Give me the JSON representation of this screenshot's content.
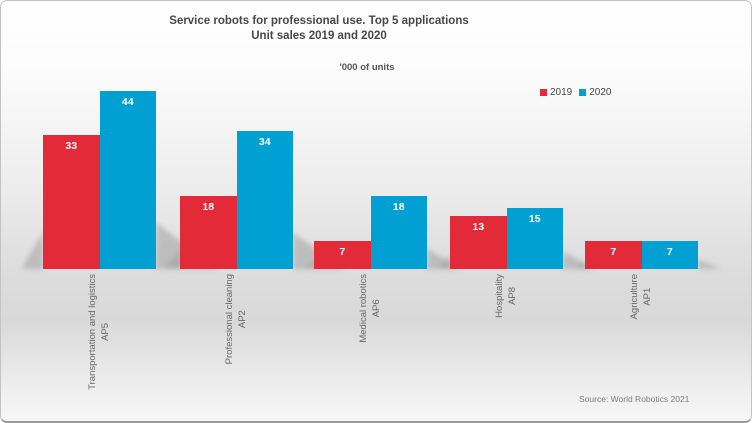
{
  "chart_data": {
    "type": "bar",
    "title": "Service robots for professional use. Top 5 applications",
    "subtitle": "Unit sales 2019 and 2020",
    "units_label": "'000 of units",
    "source": "Source: World Robotics 2021",
    "legend_position": "top-right",
    "grid": false,
    "value_labels": "inside-top, white bold",
    "ylim": [
      0,
      46
    ],
    "categories": [
      {
        "label": "Transportation and logistics",
        "code": "AP5"
      },
      {
        "label": "Professional cleaning",
        "code": "AP2"
      },
      {
        "label": "Medical robotics",
        "code": "AP6"
      },
      {
        "label": "Hospitality",
        "code": "AP8"
      },
      {
        "label": "Agriculture",
        "code": "AP1"
      }
    ],
    "series": [
      {
        "name": "2019",
        "color": "#e32a38",
        "values": [
          33,
          18,
          7,
          13,
          7
        ]
      },
      {
        "name": "2020",
        "color": "#00a0d2",
        "values": [
          44,
          34,
          18,
          15,
          7
        ]
      }
    ]
  }
}
